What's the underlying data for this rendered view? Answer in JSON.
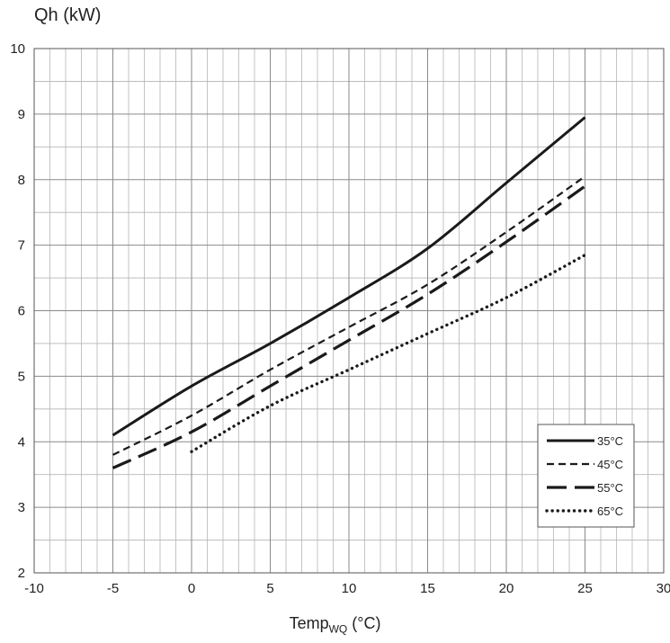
{
  "chart_data": {
    "type": "line",
    "ylabel": "Qh (kW)",
    "xlabel": {
      "main": "Temp",
      "sub": "WQ",
      "unit": " (°C)"
    },
    "xlim": [
      -10,
      30
    ],
    "ylim": [
      2,
      10
    ],
    "x_major_ticks": [
      -10,
      -5,
      0,
      5,
      10,
      15,
      20,
      25,
      30
    ],
    "y_major_ticks": [
      2,
      3,
      4,
      5,
      6,
      7,
      8,
      9,
      10
    ],
    "x_grid_step": 1,
    "y_grid_step": 0.5,
    "grid": true,
    "legend_position": "bottom-right",
    "series": [
      {
        "name": "35°C",
        "dash": "solid",
        "points": [
          [
            -5,
            4.1
          ],
          [
            0,
            4.85
          ],
          [
            5,
            5.5
          ],
          [
            10,
            6.2
          ],
          [
            15,
            6.95
          ],
          [
            20,
            7.95
          ],
          [
            25,
            8.95
          ]
        ]
      },
      {
        "name": "45°C",
        "dash": "short-dash",
        "points": [
          [
            -5,
            3.8
          ],
          [
            0,
            4.4
          ],
          [
            5,
            5.1
          ],
          [
            10,
            5.75
          ],
          [
            15,
            6.4
          ],
          [
            20,
            7.2
          ],
          [
            25,
            8.05
          ]
        ]
      },
      {
        "name": "55°C",
        "dash": "long-dash",
        "points": [
          [
            -5,
            3.6
          ],
          [
            0,
            4.15
          ],
          [
            5,
            4.85
          ],
          [
            10,
            5.55
          ],
          [
            15,
            6.25
          ],
          [
            20,
            7.05
          ],
          [
            25,
            7.9
          ]
        ]
      },
      {
        "name": "65°C",
        "dash": "dotted",
        "points": [
          [
            0,
            3.85
          ],
          [
            5,
            4.55
          ],
          [
            10,
            5.1
          ],
          [
            15,
            5.65
          ],
          [
            20,
            6.2
          ],
          [
            25,
            6.85
          ]
        ]
      }
    ]
  }
}
